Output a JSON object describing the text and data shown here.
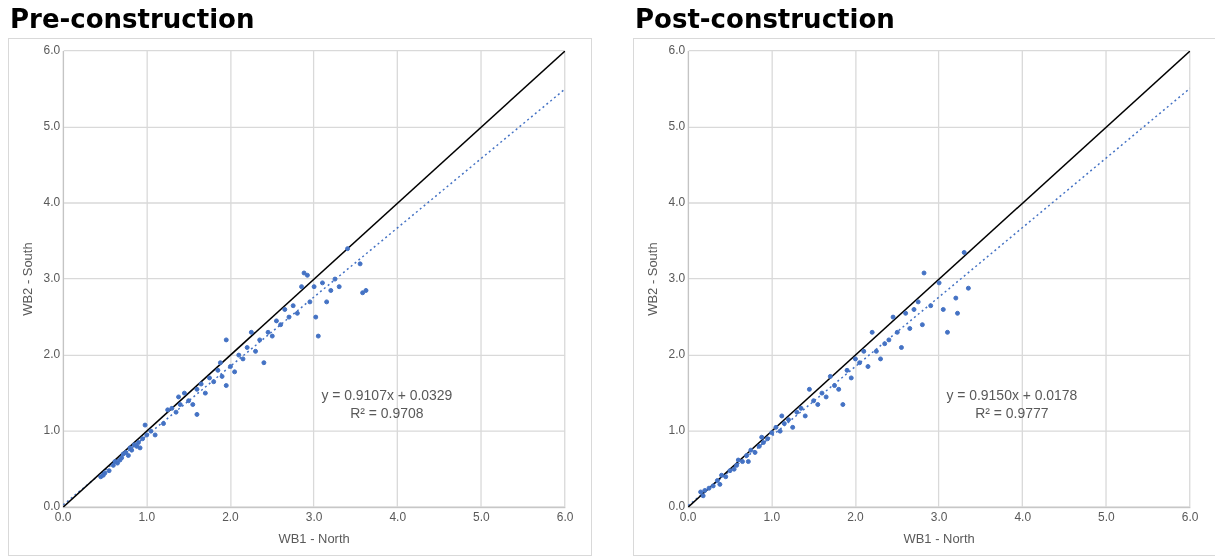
{
  "chart_data": [
    {
      "type": "scatter",
      "title": "Pre-construction",
      "xlabel": "WB1 - North",
      "ylabel": "WB2 - South",
      "grid": true,
      "xlim": [
        0,
        6
      ],
      "ylim": [
        0,
        6
      ],
      "xticks": [
        {
          "value": 0,
          "label": "0.0"
        },
        {
          "value": 1,
          "label": "1.0"
        },
        {
          "value": 2,
          "label": "2.0"
        },
        {
          "value": 3,
          "label": "3.0"
        },
        {
          "value": 4,
          "label": "4.0"
        },
        {
          "value": 5,
          "label": "5.0"
        },
        {
          "value": 6,
          "label": "6.0"
        }
      ],
      "yticks": [
        {
          "value": 0,
          "label": "0.0"
        },
        {
          "value": 1,
          "label": "1.0"
        },
        {
          "value": 2,
          "label": "2.0"
        },
        {
          "value": 3,
          "label": "3.0"
        },
        {
          "value": 4,
          "label": "4.0"
        },
        {
          "value": 5,
          "label": "5.0"
        },
        {
          "value": 6,
          "label": "6.0"
        }
      ],
      "annotations": [
        "y = 0.9107x + 0.0329",
        "R² = 0.9708"
      ],
      "series": [
        {
          "type": "scatter",
          "color": "#4472c4",
          "marker": "circle",
          "x": [
            0.45,
            0.48,
            0.5,
            0.55,
            0.6,
            0.62,
            0.65,
            0.68,
            0.7,
            0.72,
            0.75,
            0.78,
            0.8,
            0.82,
            0.85,
            0.88,
            0.9,
            0.92,
            0.95,
            0.98,
            1.0,
            1.05,
            1.1,
            1.2,
            1.25,
            1.3,
            1.35,
            1.38,
            1.4,
            1.45,
            1.5,
            1.55,
            1.6,
            1.6,
            1.65,
            1.7,
            1.75,
            1.8,
            1.85,
            1.88,
            1.9,
            1.95,
            1.95,
            2.0,
            2.05,
            2.1,
            2.15,
            2.2,
            2.25,
            2.3,
            2.35,
            2.4,
            2.45,
            2.5,
            2.55,
            2.6,
            2.65,
            2.7,
            2.75,
            2.8,
            2.85,
            2.88,
            2.92,
            2.95,
            3.0,
            3.02,
            3.05,
            3.1,
            3.15,
            3.2,
            3.25,
            3.3,
            3.4,
            3.55,
            3.58,
            3.62
          ],
          "values": [
            0.4,
            0.42,
            0.45,
            0.48,
            0.55,
            0.6,
            0.58,
            0.62,
            0.65,
            0.7,
            0.72,
            0.68,
            0.78,
            0.75,
            0.82,
            0.8,
            0.85,
            0.78,
            0.9,
            1.08,
            0.95,
            1.0,
            0.95,
            1.1,
            1.28,
            1.3,
            1.25,
            1.45,
            1.35,
            1.5,
            1.4,
            1.35,
            1.22,
            1.55,
            1.62,
            1.5,
            1.7,
            1.65,
            1.8,
            1.9,
            1.72,
            2.2,
            1.6,
            1.85,
            1.78,
            2.0,
            1.95,
            2.1,
            2.3,
            2.05,
            2.2,
            1.9,
            2.3,
            2.25,
            2.45,
            2.4,
            2.6,
            2.5,
            2.65,
            2.55,
            2.9,
            3.08,
            3.05,
            2.7,
            2.9,
            2.5,
            2.25,
            2.95,
            2.7,
            2.85,
            3.0,
            2.9,
            3.4,
            3.2,
            2.82,
            2.85
          ]
        },
        {
          "type": "line",
          "color": "#000000",
          "marker": "none",
          "line_style": "solid",
          "x": [
            0,
            6
          ],
          "values": [
            0,
            6
          ]
        },
        {
          "type": "line",
          "color": "#4472c4",
          "marker": "none",
          "line_style": "dotted",
          "x": [
            0,
            6
          ],
          "values": [
            0.03,
            5.5
          ]
        }
      ]
    },
    {
      "type": "scatter",
      "title": "Post-construction",
      "xlabel": "WB1 - North",
      "ylabel": "WB2 - South",
      "grid": true,
      "xlim": [
        0,
        6
      ],
      "ylim": [
        0,
        6
      ],
      "xticks": [
        {
          "value": 0,
          "label": "0.0"
        },
        {
          "value": 1,
          "label": "1.0"
        },
        {
          "value": 2,
          "label": "2.0"
        },
        {
          "value": 3,
          "label": "3.0"
        },
        {
          "value": 4,
          "label": "4.0"
        },
        {
          "value": 5,
          "label": "5.0"
        },
        {
          "value": 6,
          "label": "6.0"
        }
      ],
      "yticks": [
        {
          "value": 0,
          "label": "0.0"
        },
        {
          "value": 1,
          "label": "1.0"
        },
        {
          "value": 2,
          "label": "2.0"
        },
        {
          "value": 3,
          "label": "3.0"
        },
        {
          "value": 4,
          "label": "4.0"
        },
        {
          "value": 5,
          "label": "5.0"
        },
        {
          "value": 6,
          "label": "6.0"
        }
      ],
      "annotations": [
        "y = 0.9150x + 0.0178",
        "R² = 0.9777"
      ],
      "series": [
        {
          "type": "scatter",
          "color": "#4472c4",
          "marker": "circle",
          "x": [
            0.15,
            0.18,
            0.2,
            0.25,
            0.3,
            0.35,
            0.38,
            0.4,
            0.45,
            0.5,
            0.55,
            0.58,
            0.6,
            0.65,
            0.7,
            0.72,
            0.75,
            0.8,
            0.85,
            0.88,
            0.9,
            0.95,
            1.0,
            1.05,
            1.1,
            1.12,
            1.15,
            1.2,
            1.25,
            1.3,
            1.35,
            1.4,
            1.45,
            1.5,
            1.55,
            1.6,
            1.65,
            1.7,
            1.75,
            1.8,
            1.85,
            1.9,
            1.95,
            2.0,
            2.05,
            2.1,
            2.15,
            2.2,
            2.25,
            2.3,
            2.35,
            2.4,
            2.45,
            2.5,
            2.55,
            2.6,
            2.65,
            2.7,
            2.75,
            2.8,
            2.82,
            2.9,
            3.0,
            3.05,
            3.1,
            3.2,
            3.22,
            3.3,
            3.35
          ],
          "values": [
            0.2,
            0.15,
            0.22,
            0.25,
            0.28,
            0.35,
            0.3,
            0.42,
            0.4,
            0.48,
            0.5,
            0.55,
            0.62,
            0.6,
            0.68,
            0.6,
            0.75,
            0.72,
            0.8,
            0.92,
            0.85,
            0.9,
            0.98,
            1.05,
            1.0,
            1.2,
            1.1,
            1.15,
            1.05,
            1.25,
            1.3,
            1.2,
            1.55,
            1.4,
            1.35,
            1.5,
            1.45,
            1.72,
            1.6,
            1.55,
            1.35,
            1.8,
            1.7,
            1.95,
            1.9,
            2.05,
            1.85,
            2.3,
            2.05,
            1.95,
            2.15,
            2.2,
            2.5,
            2.3,
            2.1,
            2.55,
            2.35,
            2.6,
            2.7,
            2.4,
            3.08,
            2.65,
            2.95,
            2.6,
            2.3,
            2.75,
            2.55,
            3.35,
            2.88
          ]
        },
        {
          "type": "line",
          "color": "#000000",
          "marker": "none",
          "line_style": "solid",
          "x": [
            0,
            6
          ],
          "values": [
            0,
            6
          ]
        },
        {
          "type": "line",
          "color": "#4472c4",
          "marker": "none",
          "line_style": "dotted",
          "x": [
            0,
            6
          ],
          "values": [
            0.02,
            5.51
          ]
        }
      ]
    }
  ]
}
